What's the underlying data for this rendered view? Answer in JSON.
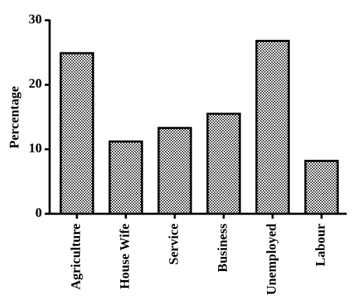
{
  "chart_data": {
    "type": "bar",
    "y_label": "Percentage",
    "categories": [
      "Agriculture",
      "House Wife",
      "Service",
      "Business",
      "Unemployed",
      "Labour"
    ],
    "values": [
      24.9,
      11.2,
      13.3,
      15.5,
      26.8,
      8.2
    ],
    "ylim": [
      0,
      30
    ],
    "yticks": [
      0,
      10,
      20,
      30
    ]
  }
}
